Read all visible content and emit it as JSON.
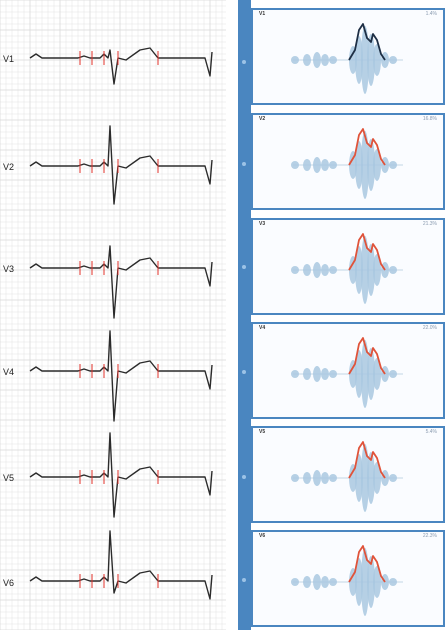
{
  "ecg": {
    "leads": [
      {
        "label": "V1"
      },
      {
        "label": "V2"
      },
      {
        "label": "V3"
      },
      {
        "label": "V4"
      },
      {
        "label": "V5"
      },
      {
        "label": "V6"
      }
    ]
  },
  "colors": {
    "sidebar": "#4a86c0",
    "grid": "#d9d9d9",
    "trace": "#2b2b2b",
    "marker": "#e0302a",
    "spectrum_fill": "#a9c8e0",
    "outline_dark": "#1e2f45",
    "outline_red": "#e0533a"
  },
  "panels": [
    {
      "tag": "V1",
      "value": "1.4%",
      "outline": "dark"
    },
    {
      "tag": "V2",
      "value": "16.8%",
      "outline": "red"
    },
    {
      "tag": "V3",
      "value": "21.3%",
      "outline": "red"
    },
    {
      "tag": "V4",
      "value": "22.0%",
      "outline": "red"
    },
    {
      "tag": "V5",
      "value": "5.4%",
      "outline": "red"
    },
    {
      "tag": "V6",
      "value": "22.3%",
      "outline": "red"
    }
  ]
}
